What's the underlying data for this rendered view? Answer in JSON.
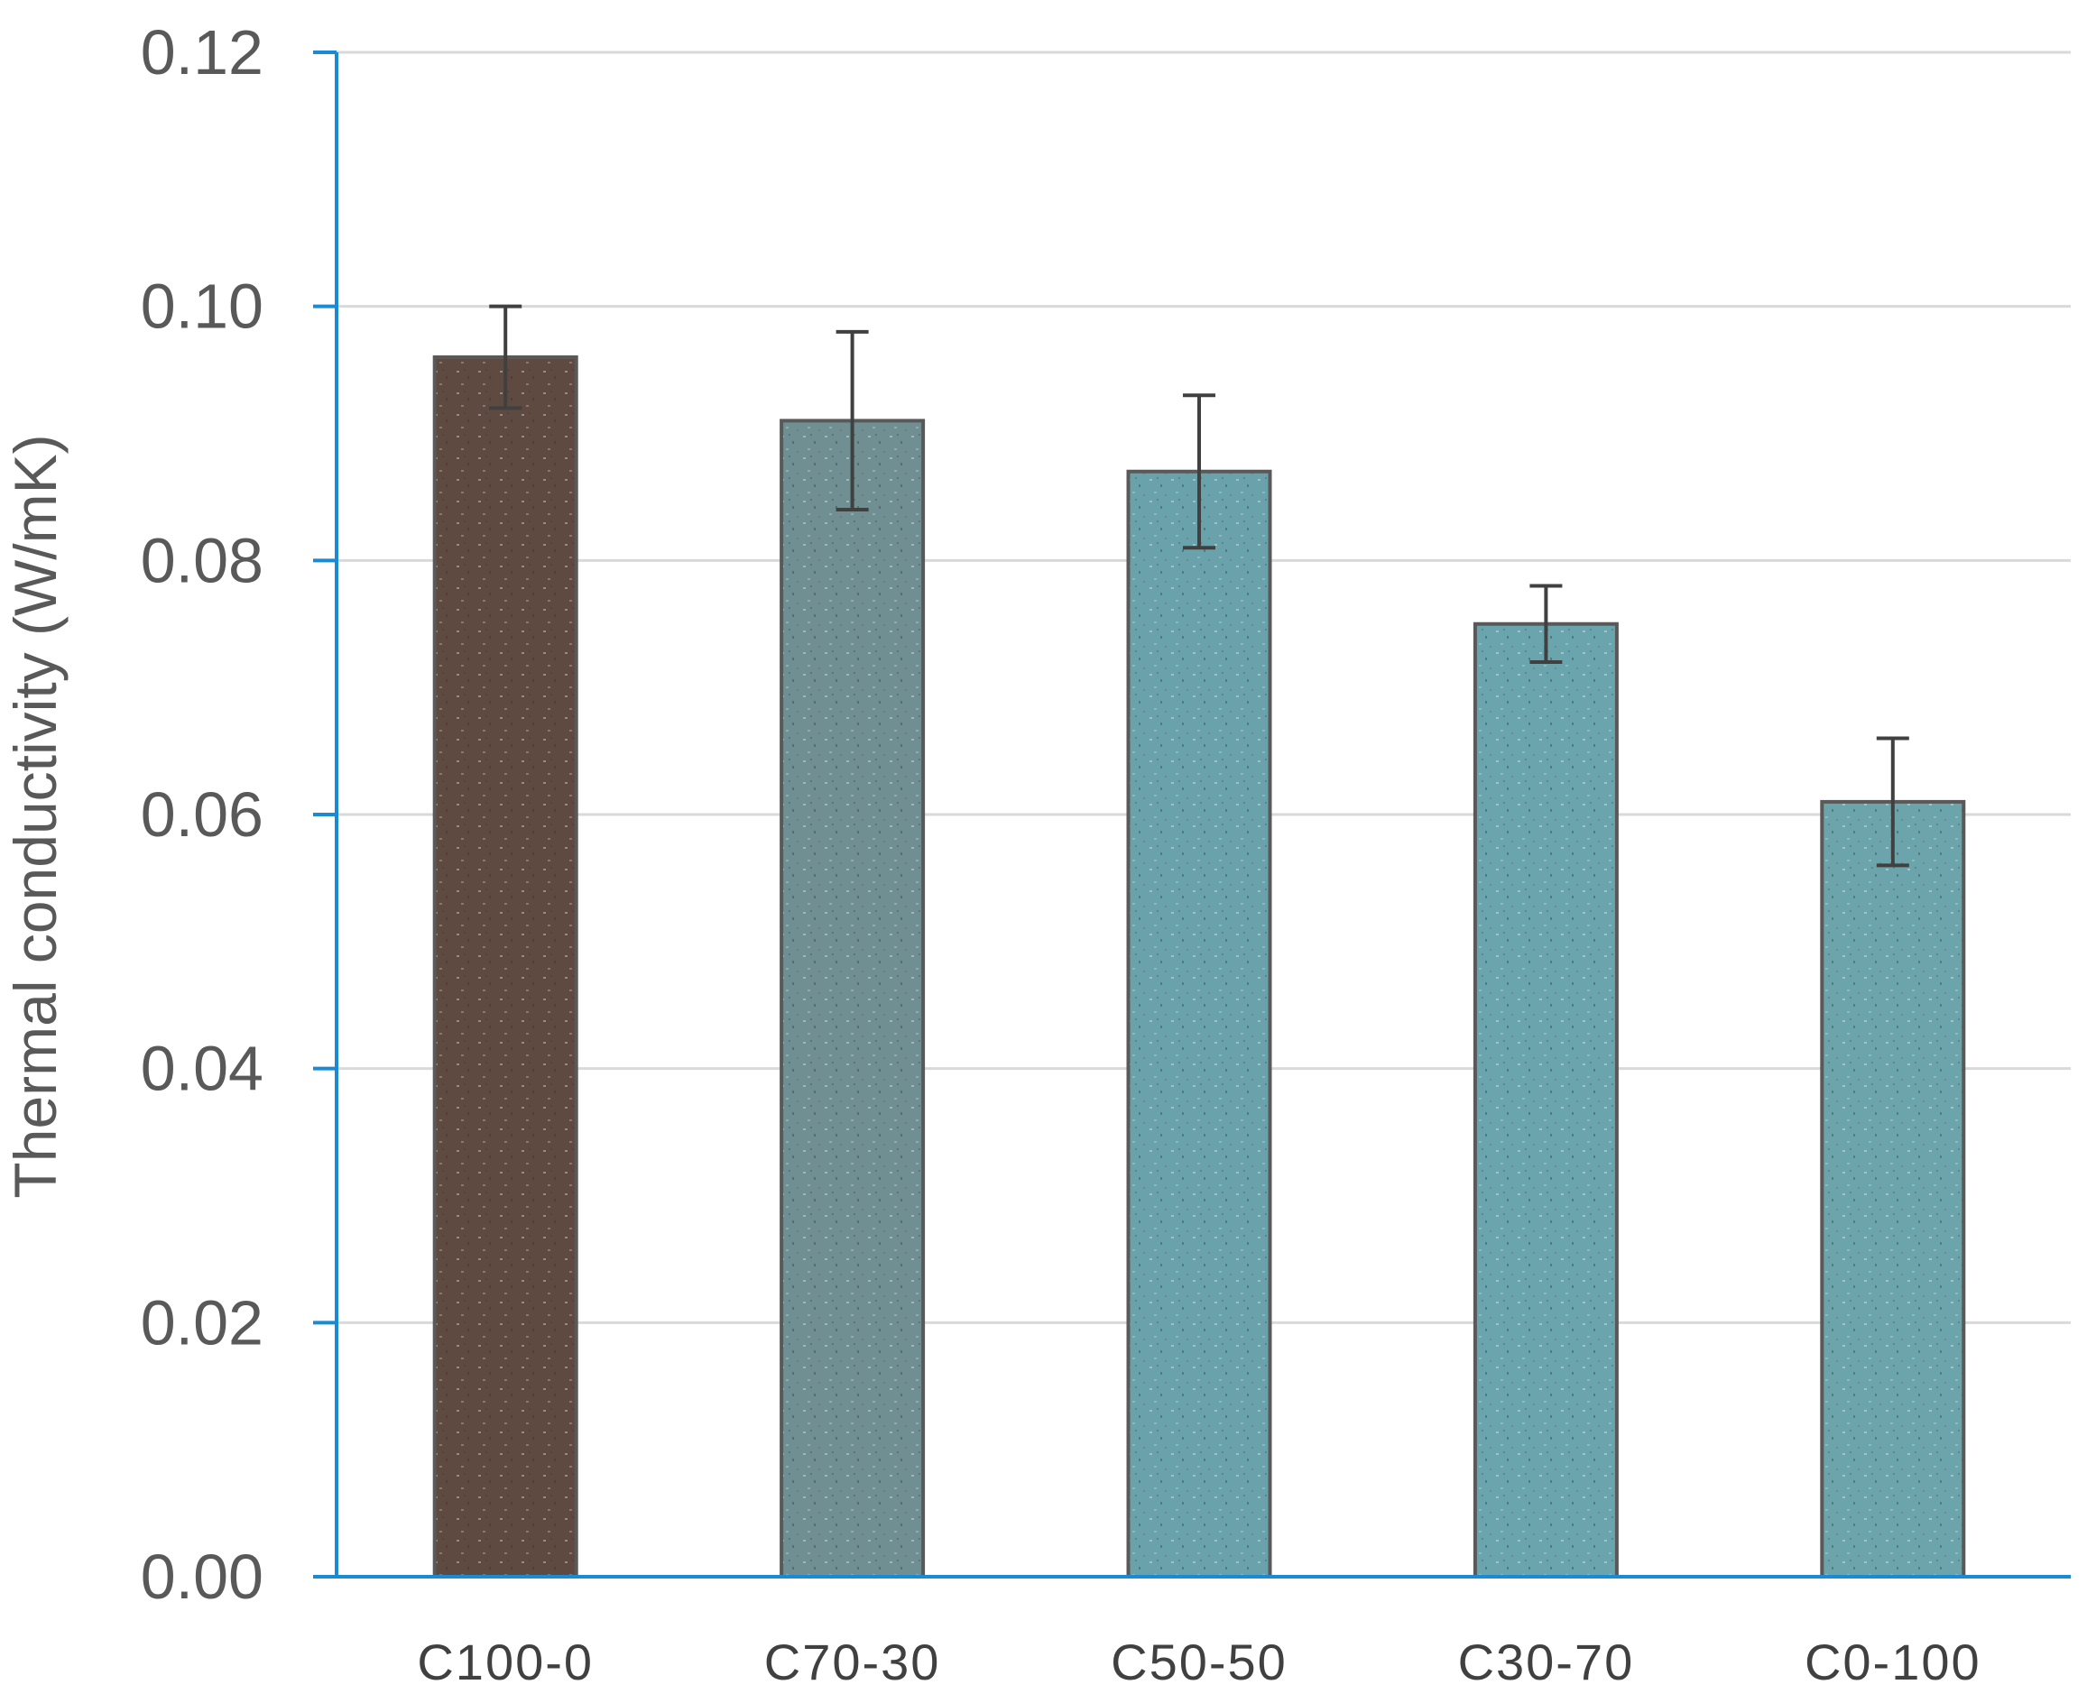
{
  "chart_data": {
    "type": "bar",
    "title": "",
    "xlabel": "",
    "ylabel": "Thermal conductivity (W/mK)",
    "ylim": [
      0,
      0.12
    ],
    "yticks": [
      "0.00",
      "0.02",
      "0.04",
      "0.06",
      "0.08",
      "0.10",
      "0.12"
    ],
    "grid": true,
    "legend": "none",
    "categories": [
      "C100-0",
      "C70-30",
      "C50-50",
      "C30-70",
      "C0-100"
    ],
    "values": [
      0.096,
      0.091,
      0.087,
      0.075,
      0.061
    ],
    "error": [
      0.004,
      0.007,
      0.006,
      0.003,
      0.005
    ],
    "bar_fill_colors": [
      "#5e4a40",
      "#6f8f92",
      "#6aa2ab",
      "#6aa5ae",
      "#6ba4ab"
    ],
    "bar_edge_color": "#595959",
    "axis_color": "#1a8ad4",
    "grid_color": "#d9d9d9"
  }
}
